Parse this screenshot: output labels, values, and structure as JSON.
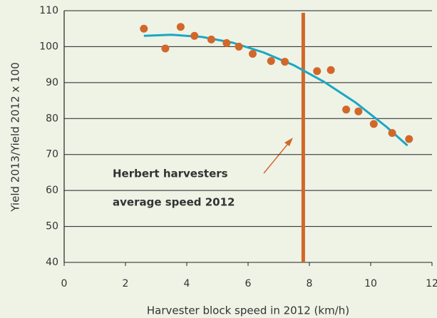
{
  "chart_data": {
    "type": "scatter",
    "xlabel": "Harvester block speed in 2012 (km/h)",
    "ylabel": "Yield 2013/Yield 2012 x 100",
    "xlim": [
      0,
      12
    ],
    "xticks": [
      0,
      2,
      4,
      6,
      8,
      10,
      12
    ],
    "ylim": [
      40,
      110
    ],
    "yticks": [
      40,
      50,
      60,
      70,
      80,
      90,
      100,
      110
    ],
    "grid": true,
    "series": [
      {
        "color": "#d2672a",
        "x": [
          2.6,
          3.3,
          3.8,
          4.25,
          4.8,
          5.3,
          5.7,
          6.15,
          6.75,
          7.2,
          8.25,
          8.7,
          9.2,
          9.6,
          10.1,
          10.7,
          11.25
        ],
        "values": [
          105,
          99.5,
          105.5,
          103,
          102,
          101,
          100,
          98,
          96,
          95.8,
          93.2,
          93.5,
          82.5,
          82,
          78.5,
          76,
          74.3
        ]
      }
    ],
    "trend": {
      "color": "#1aa7c4",
      "x": [
        2.6,
        3.5,
        4.5,
        5.5,
        6.5,
        7.5,
        8.5,
        9.5,
        10.5,
        11.2
      ],
      "values": [
        103.0,
        103.3,
        102.7,
        101.1,
        98.4,
        94.8,
        90.1,
        84.5,
        77.8,
        72.5
      ]
    },
    "reference_line": {
      "x": 7.8,
      "color": "#d2672a"
    },
    "annotation": [
      "Herbert harvesters",
      "average speed 2012"
    ]
  }
}
